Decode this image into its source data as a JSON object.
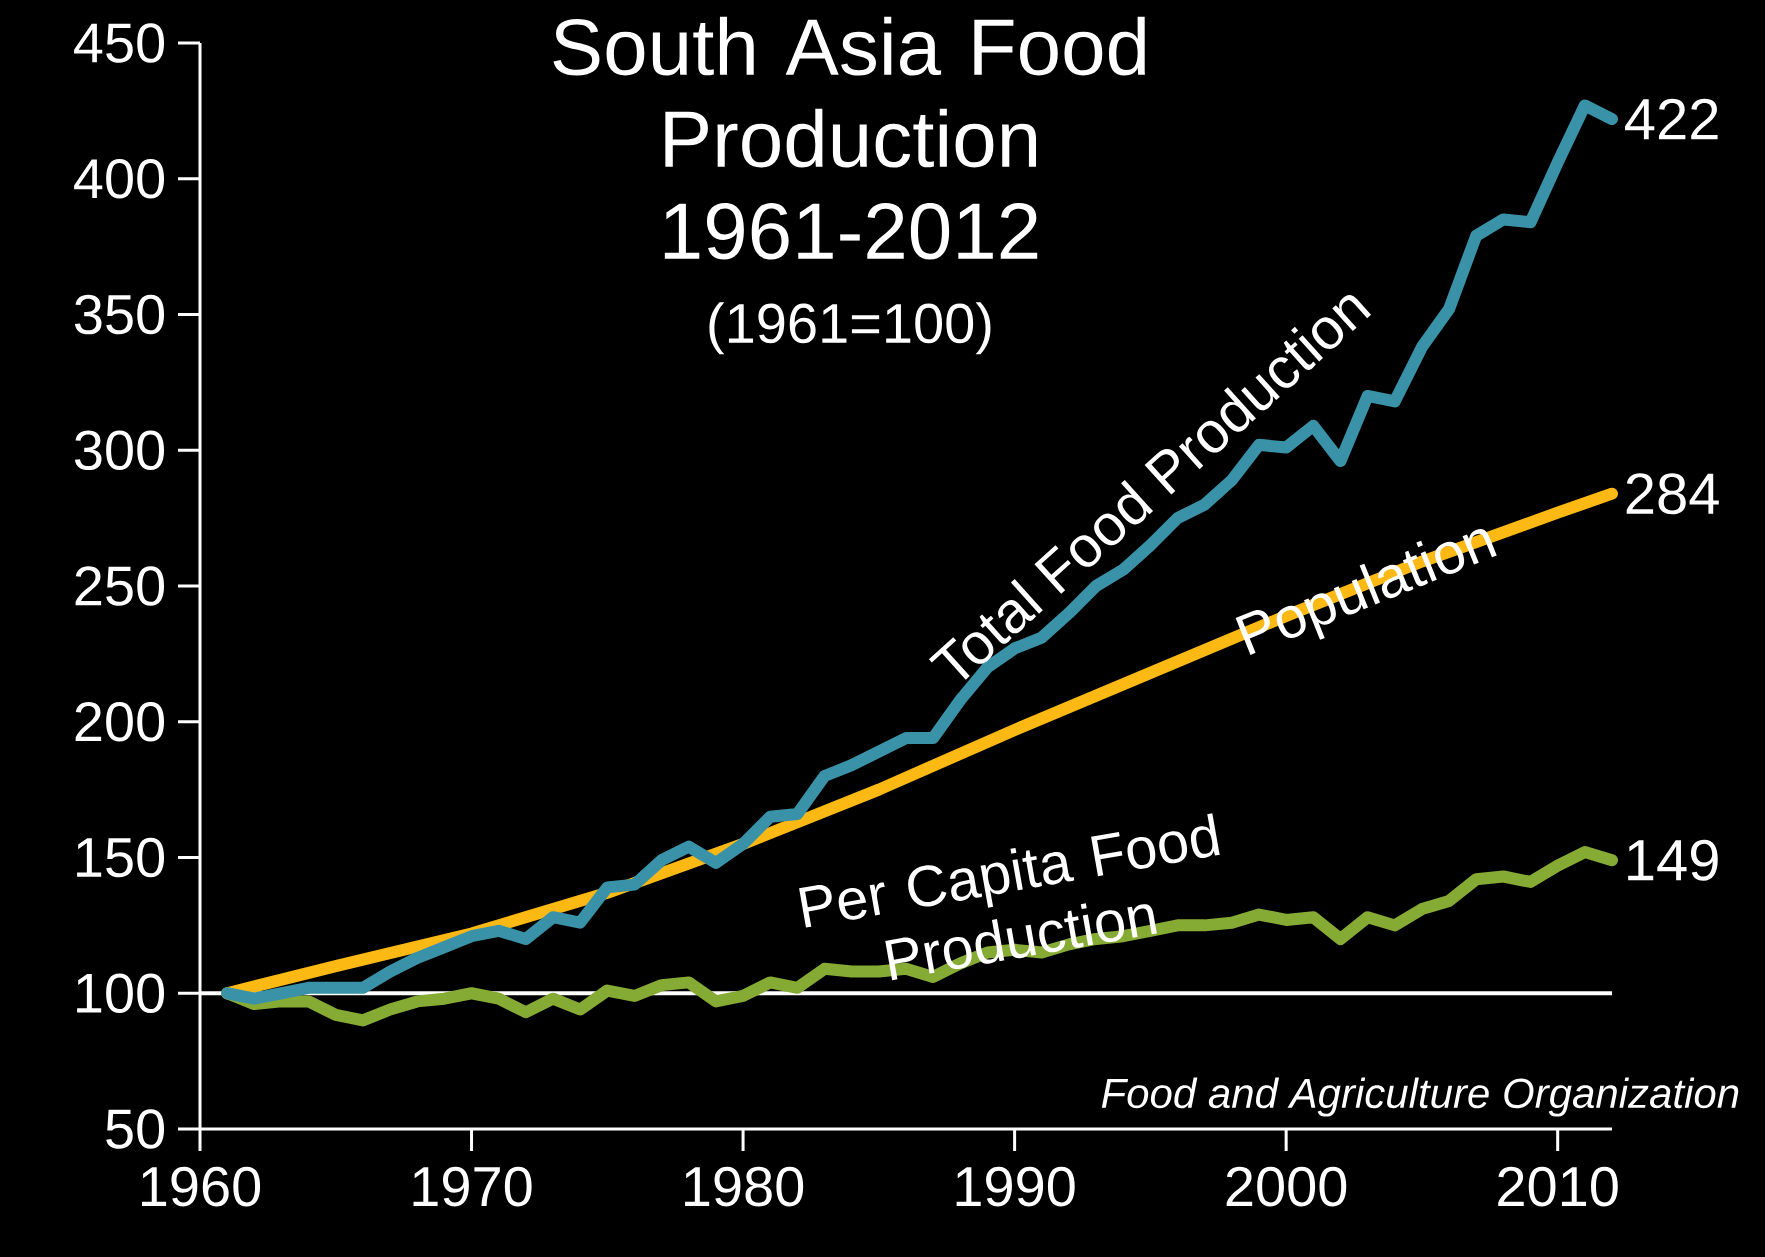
{
  "chart_data": {
    "type": "line",
    "title": "South Asia Food Production 1961-2012",
    "subtitle": "(1961=100)",
    "x": [
      1961,
      1962,
      1963,
      1964,
      1965,
      1966,
      1967,
      1968,
      1969,
      1970,
      1971,
      1972,
      1973,
      1974,
      1975,
      1976,
      1977,
      1978,
      1979,
      1980,
      1981,
      1982,
      1983,
      1984,
      1985,
      1986,
      1987,
      1988,
      1989,
      1990,
      1991,
      1992,
      1993,
      1994,
      1995,
      1996,
      1997,
      1998,
      1999,
      2000,
      2001,
      2002,
      2003,
      2004,
      2005,
      2006,
      2007,
      2008,
      2009,
      2010,
      2011,
      2012
    ],
    "series": [
      {
        "name": "Total Food Production",
        "color": "#3a92a8",
        "values": [
          100,
          98,
          100,
          102,
          102,
          102,
          108,
          113,
          117,
          121,
          123,
          120,
          128,
          126,
          139,
          140,
          149,
          154,
          148,
          155,
          165,
          166,
          180,
          184,
          189,
          194,
          194,
          208,
          220,
          227,
          231,
          240,
          250,
          256,
          265,
          275,
          280,
          289,
          302,
          301,
          309,
          296,
          320,
          318,
          338,
          352,
          379,
          385,
          384,
          406,
          427,
          422
        ],
        "value_labels": [
          null,
          null,
          null,
          null,
          null,
          null,
          null,
          null,
          null,
          null,
          null,
          null,
          null,
          null,
          null,
          null,
          null,
          null,
          null,
          null,
          null,
          null,
          null,
          null,
          null,
          null,
          null,
          null,
          null,
          null,
          null,
          null,
          null,
          null,
          null,
          null,
          null,
          null,
          null,
          null,
          null,
          null,
          null,
          null,
          null,
          null,
          null,
          null,
          null,
          null,
          null,
          "422"
        ]
      },
      {
        "name": "Population",
        "color": "#fdb913",
        "x": [
          1961,
          1965,
          1970,
          1975,
          1980,
          1985,
          1990,
          1995,
          2000,
          2005,
          2010,
          2012
        ],
        "values": [
          100,
          110,
          122,
          137,
          155,
          175,
          197,
          218,
          239,
          259,
          277,
          284
        ],
        "value_labels": [
          null,
          null,
          null,
          null,
          null,
          null,
          null,
          null,
          null,
          null,
          null,
          "284"
        ]
      },
      {
        "name": "Per Capita Food Production",
        "color": "#86ab35",
        "values": [
          100,
          96,
          97,
          97,
          92,
          90,
          94,
          97,
          98,
          100,
          98,
          93,
          98,
          94,
          101,
          99,
          103,
          104,
          97,
          99,
          104,
          102,
          109,
          108,
          108,
          109,
          106,
          111,
          115,
          116,
          115,
          118,
          120,
          121,
          123,
          125,
          125,
          126,
          129,
          127,
          128,
          120,
          128,
          125,
          131,
          134,
          142,
          143,
          141,
          147,
          152,
          149
        ],
        "value_labels": [
          null,
          null,
          null,
          null,
          null,
          null,
          null,
          null,
          null,
          null,
          null,
          null,
          null,
          null,
          null,
          null,
          null,
          null,
          null,
          null,
          null,
          null,
          null,
          null,
          null,
          null,
          null,
          null,
          null,
          null,
          null,
          null,
          null,
          null,
          null,
          null,
          null,
          null,
          null,
          null,
          null,
          null,
          null,
          null,
          null,
          null,
          null,
          null,
          null,
          null,
          null,
          "149"
        ]
      }
    ],
    "xlim": [
      1960,
      2012
    ],
    "ylim": [
      50,
      450
    ],
    "xticks": [
      1960,
      1970,
      1980,
      1990,
      2000,
      2010
    ],
    "yticks": [
      50,
      100,
      150,
      200,
      250,
      300,
      350,
      400,
      450
    ],
    "ref_lines": [
      {
        "axis": "y",
        "value": 100,
        "color": "#ffffff"
      }
    ],
    "annotations": [
      "Food and Agriculture Organization"
    ]
  }
}
